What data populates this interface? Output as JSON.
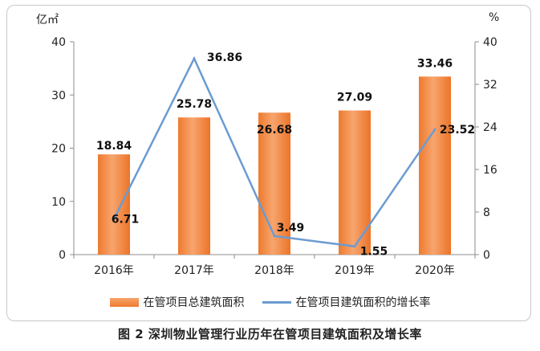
{
  "left_axis_unit": "亿㎡",
  "right_axis_unit": "%",
  "caption": "图 2  深圳物业管理行业历年在管项目建筑面积及增长率",
  "colors": {
    "bar": "#f08a45",
    "line": "#6b9bd1"
  },
  "chart_data": {
    "type": "bar",
    "categories": [
      "2016年",
      "2017年",
      "2018年",
      "2019年",
      "2020年"
    ],
    "series": [
      {
        "name": "在管项目总建筑面积",
        "type": "bar",
        "axis": "left",
        "values": [
          18.84,
          25.78,
          26.68,
          27.09,
          33.46
        ],
        "labels": [
          "18.84",
          "25.78",
          "26.68",
          "27.09",
          "33.46"
        ]
      },
      {
        "name": "在管项目建筑面积的增长率",
        "type": "line",
        "axis": "right",
        "values": [
          6.71,
          36.86,
          3.49,
          1.55,
          23.52
        ],
        "labels": [
          "6.71",
          "36.86",
          "3.49",
          "1.55",
          "23.52"
        ]
      }
    ],
    "y_left": {
      "ylim": [
        0,
        40
      ],
      "ticks": [
        "0",
        "10",
        "20",
        "30",
        "40"
      ]
    },
    "y_right": {
      "ylim": [
        0,
        40
      ],
      "ticks": [
        "0",
        "8",
        "16",
        "24",
        "32",
        "40"
      ]
    },
    "grid": false,
    "legend": "bottom"
  }
}
